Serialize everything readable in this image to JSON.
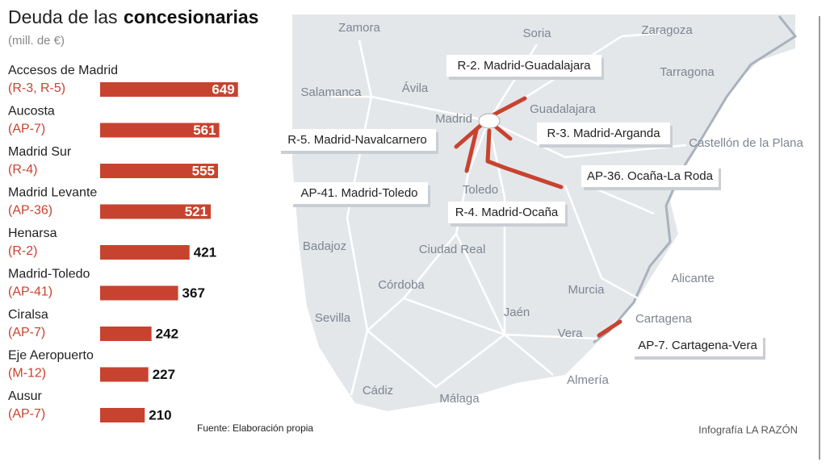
{
  "chart_data": {
    "type": "bar",
    "orientation": "horizontal",
    "title": [
      "Deuda de las",
      "concesionarias"
    ],
    "subtitle": "(mill. de €)",
    "categories": [
      "Accesos de Madrid",
      "Aucosta",
      "Madrid Sur",
      "Madrid Levante",
      "Henarsa",
      "Madrid-Toledo",
      "Ciralsa",
      "Eje Aeropuerto",
      "Ausur"
    ],
    "codes": [
      "(R-3, R-5)",
      "(AP-7)",
      "(R-4)",
      "(AP-36)",
      "(R-2)",
      "(AP-41)",
      "(AP-7)",
      "(M-12)",
      "(AP-7)"
    ],
    "values": [
      649,
      561,
      555,
      521,
      421,
      367,
      242,
      227,
      210
    ],
    "color": "#c8432f",
    "xlim": [
      0,
      650
    ]
  },
  "map": {
    "cities": [
      "Zamora",
      "Soria",
      "Zaragoza",
      "Salamanca",
      "Ávila",
      "Madrid",
      "Guadalajara",
      "Tarragona",
      "Castellón de la Plana",
      "Toledo",
      "Badajoz",
      "Ciudad Real",
      "Córdoba",
      "Alicante",
      "Murcia",
      "Sevilla",
      "Jaén",
      "Cartagena",
      "Vera",
      "Almería",
      "Cádiz",
      "Málaga"
    ],
    "routes": [
      "R-2. Madrid-Guadalajara",
      "R-3. Madrid-Arganda",
      "R-5. Madrid-Navalcarnero",
      "AP-36. Ocaña-La Roda",
      "AP-41. Madrid-Toledo",
      "R-4. Madrid-Ocaña",
      "AP-7. Cartagena-Vera"
    ]
  },
  "source": "Fuente: Elaboración propia",
  "credit": "Infografía LA RAZÓN"
}
